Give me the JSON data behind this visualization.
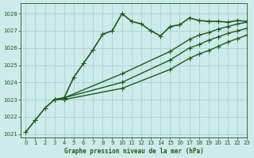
{
  "title": "Graphe pression niveau de la mer (hPa)",
  "bg_color": "#ceeaea",
  "grid_color": "#aad4d4",
  "line_color": "#1a5c1a",
  "xlim": [
    -0.5,
    23
  ],
  "ylim": [
    1020.8,
    1028.6
  ],
  "yticks": [
    1021,
    1022,
    1023,
    1024,
    1025,
    1026,
    1027,
    1028
  ],
  "xticks": [
    0,
    1,
    2,
    3,
    4,
    5,
    6,
    7,
    8,
    9,
    10,
    11,
    12,
    13,
    14,
    15,
    16,
    17,
    18,
    19,
    20,
    21,
    22,
    23
  ],
  "series": [
    {
      "x": [
        0,
        1,
        2,
        3,
        4,
        5,
        6,
        7,
        8,
        9,
        10,
        11,
        12,
        13,
        14,
        15,
        16,
        17,
        18,
        19,
        20,
        21,
        22,
        23
      ],
      "y": [
        1021.1,
        1021.8,
        1022.5,
        1023.0,
        1023.1,
        1024.3,
        1025.1,
        1025.9,
        1026.8,
        1027.0,
        1028.0,
        1027.55,
        1027.4,
        1027.0,
        1026.7,
        1027.25,
        1027.35,
        1027.75,
        1027.6,
        1027.55,
        1027.55,
        1027.5,
        1027.6,
        1027.55
      ],
      "linestyle": "-",
      "linewidth": 1.2,
      "marker": "+",
      "markersize": 5
    },
    {
      "x": [
        3,
        4,
        10,
        15,
        17,
        18,
        19,
        20,
        21,
        22,
        23
      ],
      "y": [
        1023.0,
        1023.1,
        1024.5,
        1025.8,
        1026.5,
        1026.75,
        1026.9,
        1027.1,
        1027.25,
        1027.4,
        1027.5
      ],
      "linestyle": "-",
      "linewidth": 1.0,
      "marker": "+",
      "markersize": 4
    },
    {
      "x": [
        3,
        4,
        10,
        15,
        17,
        18,
        19,
        20,
        21,
        22,
        23
      ],
      "y": [
        1023.0,
        1023.1,
        1024.0,
        1025.3,
        1026.0,
        1026.2,
        1026.45,
        1026.65,
        1026.85,
        1027.0,
        1027.15
      ],
      "linestyle": "-",
      "linewidth": 1.0,
      "marker": "+",
      "markersize": 4
    },
    {
      "x": [
        3,
        4,
        10,
        15,
        17,
        18,
        19,
        20,
        21,
        22,
        23
      ],
      "y": [
        1023.0,
        1023.0,
        1023.65,
        1024.75,
        1025.4,
        1025.65,
        1025.85,
        1026.1,
        1026.35,
        1026.55,
        1026.75
      ],
      "linestyle": "-",
      "linewidth": 1.0,
      "marker": "+",
      "markersize": 4
    }
  ]
}
